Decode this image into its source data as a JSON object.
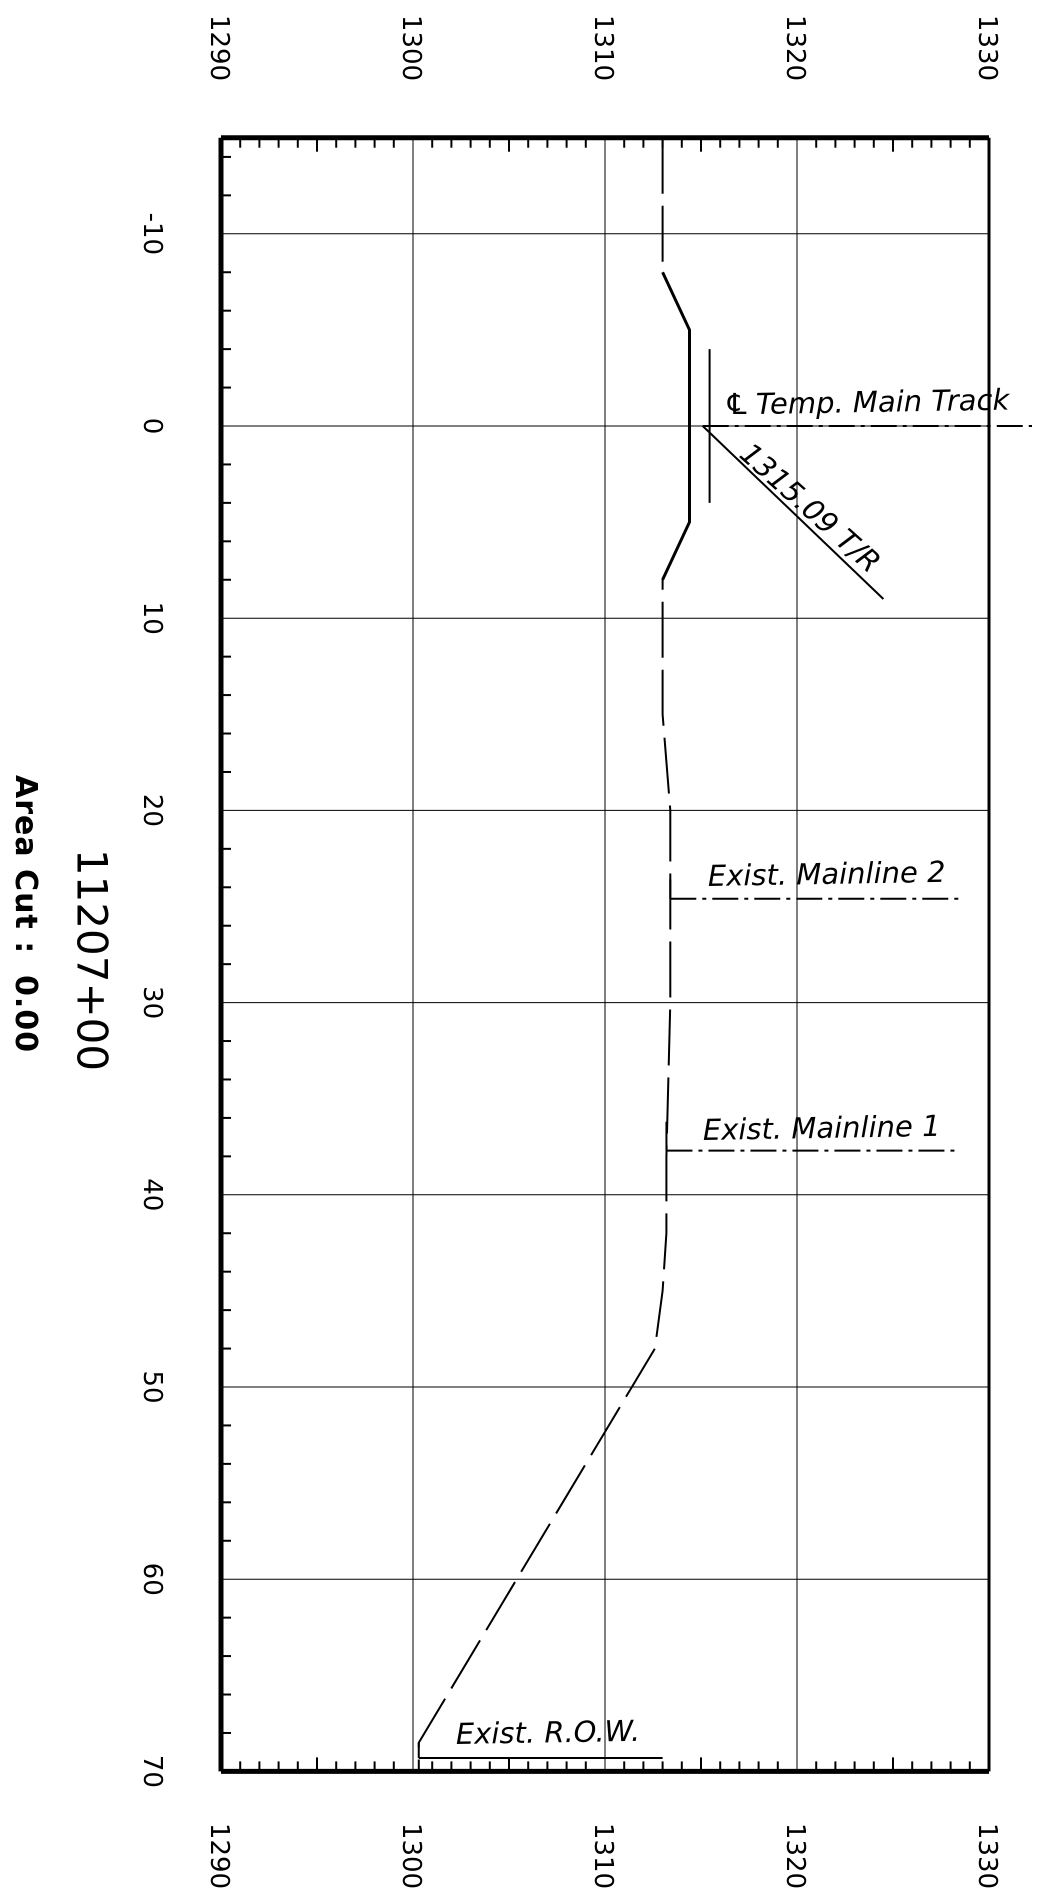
{
  "section": {
    "station": "11207+00",
    "area_label": "Area Cut :",
    "area_value": "0.00"
  },
  "axes": {
    "elevation_ticks": [
      "1290",
      "1300",
      "1310",
      "1320",
      "1330"
    ],
    "offset_ticks": [
      "-10",
      "0",
      "10",
      "20",
      "30",
      "40",
      "50",
      "60",
      "70"
    ]
  },
  "callouts": {
    "centerline_symbol": "℄",
    "centerline": "Temp. Main Track",
    "top_of_rail": "1315.09 T/R",
    "mainline_2": "Exist. Mainline 2",
    "mainline_1": "Exist. Mainline 1",
    "row": "Exist. R.O.W."
  },
  "chart_data": {
    "type": "line",
    "elevation_range": [
      1290,
      1330
    ],
    "offset_range": [
      -15,
      70
    ],
    "grid": true,
    "series": [
      {
        "points": [
          [
            -15,
            1313.0
          ],
          [
            -8,
            1313.0
          ],
          [
            -5,
            1314.4
          ],
          [
            5,
            1314.4
          ],
          [
            8,
            1313.0
          ],
          [
            15,
            1313.0
          ],
          [
            20,
            1313.4
          ],
          [
            30,
            1313.4
          ],
          [
            38,
            1313.2
          ],
          [
            42,
            1313.2
          ],
          [
            45,
            1313.0
          ],
          [
            48,
            1312.6
          ],
          [
            68.5,
            1300.3
          ],
          [
            70,
            1300.3
          ]
        ]
      },
      {
        "points": [
          [
            -8,
            1313.0
          ],
          [
            -5,
            1314.4
          ],
          [
            5,
            1314.4
          ],
          [
            8,
            1313.0
          ]
        ]
      }
    ],
    "markers": [
      {
        "offset": 0,
        "elevation": 1315.09
      },
      {
        "offset": 24.6,
        "elevation": 1313.4
      },
      {
        "offset": 37.7,
        "elevation": 1313.2
      },
      {
        "offset": 69.3,
        "elevation": 1300.3
      }
    ]
  }
}
